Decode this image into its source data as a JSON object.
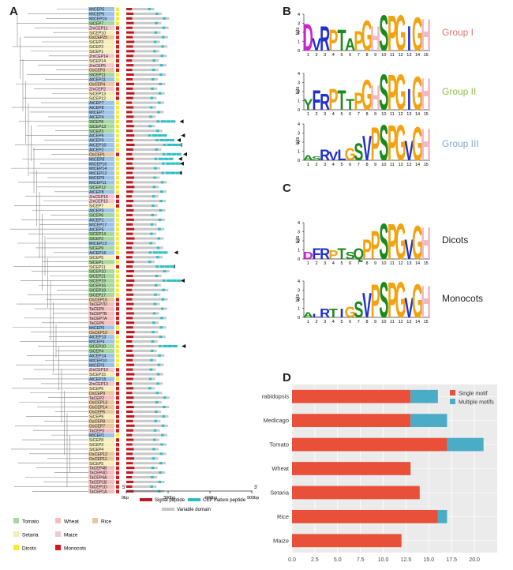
{
  "panels": {
    "a": {
      "label": "A"
    },
    "b": {
      "label": "B"
    },
    "c": {
      "label": "C"
    },
    "d": {
      "label": "D"
    }
  },
  "panel_a": {
    "genes": [
      [
        "MtCEP5",
        "Medicago"
      ],
      [
        "MtCEP6",
        "Medicago"
      ],
      [
        "MtCEP15",
        "Medicago"
      ],
      [
        "SlCEP7",
        "Tomato"
      ],
      [
        "ZmCEP11",
        "Maize"
      ],
      [
        "SiCEP10",
        "Setaria"
      ],
      [
        "OsCEP25",
        "Rice"
      ],
      [
        "SiCEP3",
        "Setaria"
      ],
      [
        "SiCEP2",
        "Setaria"
      ],
      [
        "SiCEP1",
        "Setaria"
      ],
      [
        "ZmCEP14",
        "Maize"
      ],
      [
        "SiCEP14",
        "Setaria"
      ],
      [
        "ZmCEP5",
        "Maize"
      ],
      [
        "OsCEP3",
        "Rice"
      ],
      [
        "SlCEP11",
        "Tomato"
      ],
      [
        "AtCEP11",
        "Arabidopsis"
      ],
      [
        "OsCEP4",
        "Rice"
      ],
      [
        "ZmCEP2",
        "Maize"
      ],
      [
        "SiCEP13",
        "Setaria"
      ],
      [
        "SiCEP12",
        "Setaria"
      ],
      [
        "AtCEP7",
        "Arabidopsis"
      ],
      [
        "AtCEP8",
        "Arabidopsis"
      ],
      [
        "MtCEP7",
        "Medicago"
      ],
      [
        "AtCEP4",
        "Arabidopsis"
      ],
      [
        "SlCEP8",
        "Tomato"
      ],
      [
        "SlCEP13",
        "Tomato"
      ],
      [
        "SlCEP3",
        "Tomato"
      ],
      [
        "AtCEP6",
        "Arabidopsis"
      ],
      [
        "AtCEP9",
        "Arabidopsis"
      ],
      [
        "AtCEP10",
        "Arabidopsis"
      ],
      [
        "AtCEP2",
        "Arabidopsis"
      ],
      [
        "OsCEP1",
        "Rice"
      ],
      [
        "MtCEP8",
        "Medicago"
      ],
      [
        "MtCEP16",
        "Medicago"
      ],
      [
        "MtCEP14",
        "Medicago"
      ],
      [
        "MtCEP12",
        "Medicago"
      ],
      [
        "MtCEP9",
        "Medicago"
      ],
      [
        "MtCEP11",
        "Medicago"
      ],
      [
        "SlCEP12",
        "Tomato"
      ],
      [
        "AtCEP8",
        "Arabidopsis"
      ],
      [
        "ZmCEP16",
        "Maize"
      ],
      [
        "ZmCEP15",
        "Maize"
      ],
      [
        "SiCEP7",
        "Setaria"
      ],
      [
        "AtCEP3",
        "Arabidopsis"
      ],
      [
        "SlCEP6",
        "Tomato"
      ],
      [
        "AtCEP1",
        "Arabidopsis"
      ],
      [
        "MtCEP17",
        "Medicago"
      ],
      [
        "AtCEP5",
        "Arabidopsis"
      ],
      [
        "SlCEP14",
        "Tomato"
      ],
      [
        "SlCEP2",
        "Tomato"
      ],
      [
        "MtCEP13",
        "Medicago"
      ],
      [
        "SlCEP9",
        "Tomato"
      ],
      [
        "AtCEP16",
        "Arabidopsis"
      ],
      [
        "SlCEP5",
        "Setaria"
      ],
      [
        "SlCEP1",
        "Tomato"
      ],
      [
        "SiCEP11",
        "Setaria"
      ],
      [
        "SlCEP10",
        "Tomato"
      ],
      [
        "SlCEP21",
        "Tomato"
      ],
      [
        "SlCEP19",
        "Tomato"
      ],
      [
        "SlCEP16",
        "Tomato"
      ],
      [
        "SlCEP18",
        "Tomato"
      ],
      [
        "SlCEP17",
        "Tomato"
      ],
      [
        "OsCEP15",
        "Rice"
      ],
      [
        "TaCEP7D",
        "Wheat"
      ],
      [
        "TaCEP5",
        "Wheat"
      ],
      [
        "TaCEP7B",
        "Wheat"
      ],
      [
        "TaCEP7A",
        "Wheat"
      ],
      [
        "TaCEP6",
        "Wheat"
      ],
      [
        "MtCEP5",
        "Medicago"
      ],
      [
        "OsCEP10",
        "Rice"
      ],
      [
        "AtCEP13",
        "Arabidopsis"
      ],
      [
        "MtCEP4",
        "Medicago"
      ],
      [
        "SlCEP20",
        "Tomato"
      ],
      [
        "SlCEP4",
        "Tomato"
      ],
      [
        "AtCEP14",
        "Arabidopsis"
      ],
      [
        "MtCEP10",
        "Medicago"
      ],
      [
        "MtCEP3",
        "Medicago"
      ],
      [
        "ZmCEP10",
        "Maize"
      ],
      [
        "SiCEP15",
        "Setaria"
      ],
      [
        "AtCEP15",
        "Arabidopsis"
      ],
      [
        "ZmCEP13",
        "Maize"
      ],
      [
        "SiCEP6",
        "Setaria"
      ],
      [
        "OsCEP9",
        "Rice"
      ],
      [
        "TaCEP2",
        "Wheat"
      ],
      [
        "OsCEP13",
        "Rice"
      ],
      [
        "OsCEP14",
        "Rice"
      ],
      [
        "OsCEP6",
        "Rice"
      ],
      [
        "SiCEP9",
        "Setaria"
      ],
      [
        "OsCEP8",
        "Rice"
      ],
      [
        "OsCEP7",
        "Rice"
      ],
      [
        "TaCEP3",
        "Wheat"
      ],
      [
        "MtCEP1",
        "Medicago"
      ],
      [
        "SiCEP8",
        "Setaria"
      ],
      [
        "SiCEP3",
        "Setaria"
      ],
      [
        "SiCEP4",
        "Setaria"
      ],
      [
        "OsCEP12",
        "Rice"
      ],
      [
        "OsCEP11",
        "Rice"
      ],
      [
        "SiCEP5",
        "Setaria"
      ],
      [
        "TaCEP4B",
        "Wheat"
      ],
      [
        "TaCEP4D",
        "Wheat"
      ],
      [
        "TaCEP4A",
        "Wheat"
      ],
      [
        "TaCEP1B",
        "Wheat"
      ],
      [
        "TaCEP1D",
        "Wheat"
      ],
      [
        "TaCEP1A",
        "Wheat"
      ]
    ],
    "axis": {
      "five_prime": "5'",
      "three_prime": "3'",
      "ticks": [
        "0bp",
        "300bp",
        "600bp",
        "900bp"
      ]
    },
    "structure_legend": {
      "signal": "Signal peptide",
      "mature": "CEP mature peptide",
      "variable": "Variable domain"
    },
    "species_legend": [
      {
        "key": "tomato",
        "text": "Tomato",
        "color": "#a8d8a0"
      },
      {
        "key": "wheat",
        "text": "Wheat",
        "color": "#f2bfbf"
      },
      {
        "key": "rice",
        "text": "Rice",
        "color": "#e8c9a0"
      },
      {
        "key": "setaria",
        "text": "Setaria",
        "color": "#f5eeb8"
      },
      {
        "key": "maize",
        "text": "Maize",
        "color": "#f3c8cf"
      },
      {
        "key": "dicots",
        "text": "Dicots",
        "color": "#f2ef2a"
      },
      {
        "key": "monocots",
        "text": "Monocots",
        "color": "#d7191c"
      }
    ],
    "colors": {
      "signal": "#c0161c",
      "mature": "#2bbfc4",
      "variable": "#c8c8c8",
      "medicago": "#9dc3e6",
      "arabidopsis": "#9dc3e6"
    }
  },
  "panel_b": {
    "groups": [
      "Group I",
      "Group II",
      "Group III"
    ],
    "group_colors": [
      "#e57373",
      "#8bc34a",
      "#7fa9d9"
    ],
    "axis_label": "bits",
    "positions": [
      "1",
      "2",
      "3",
      "4",
      "5",
      "6",
      "7",
      "8",
      "9",
      "10",
      "11",
      "12",
      "13",
      "14",
      "15"
    ]
  },
  "panel_c": {
    "groups": [
      "Dicots",
      "Monocots"
    ],
    "axis_label": "bits"
  },
  "chart_data": {
    "type": "bar",
    "orientation": "horizontal",
    "stacked": true,
    "categories": [
      "rabidopsis",
      "Medicago",
      "Tomato",
      "Wheat",
      "Setaria",
      "Rice",
      "Maize"
    ],
    "series": [
      {
        "name": "Single motif",
        "values": [
          13,
          13,
          17,
          13,
          14,
          16,
          12
        ],
        "color": "#e8503a"
      },
      {
        "name": "Multiple motifs",
        "values": [
          3,
          4,
          4,
          0,
          0,
          1,
          0
        ],
        "color": "#4bacc6"
      }
    ],
    "xlim": [
      0,
      22.5
    ],
    "xticks": [
      "0.0",
      "2.5",
      "5.0",
      "7.5",
      "10.0",
      "12.5",
      "15.0",
      "17.5",
      "20.0"
    ],
    "grid": true,
    "legend_position": "top-right"
  }
}
